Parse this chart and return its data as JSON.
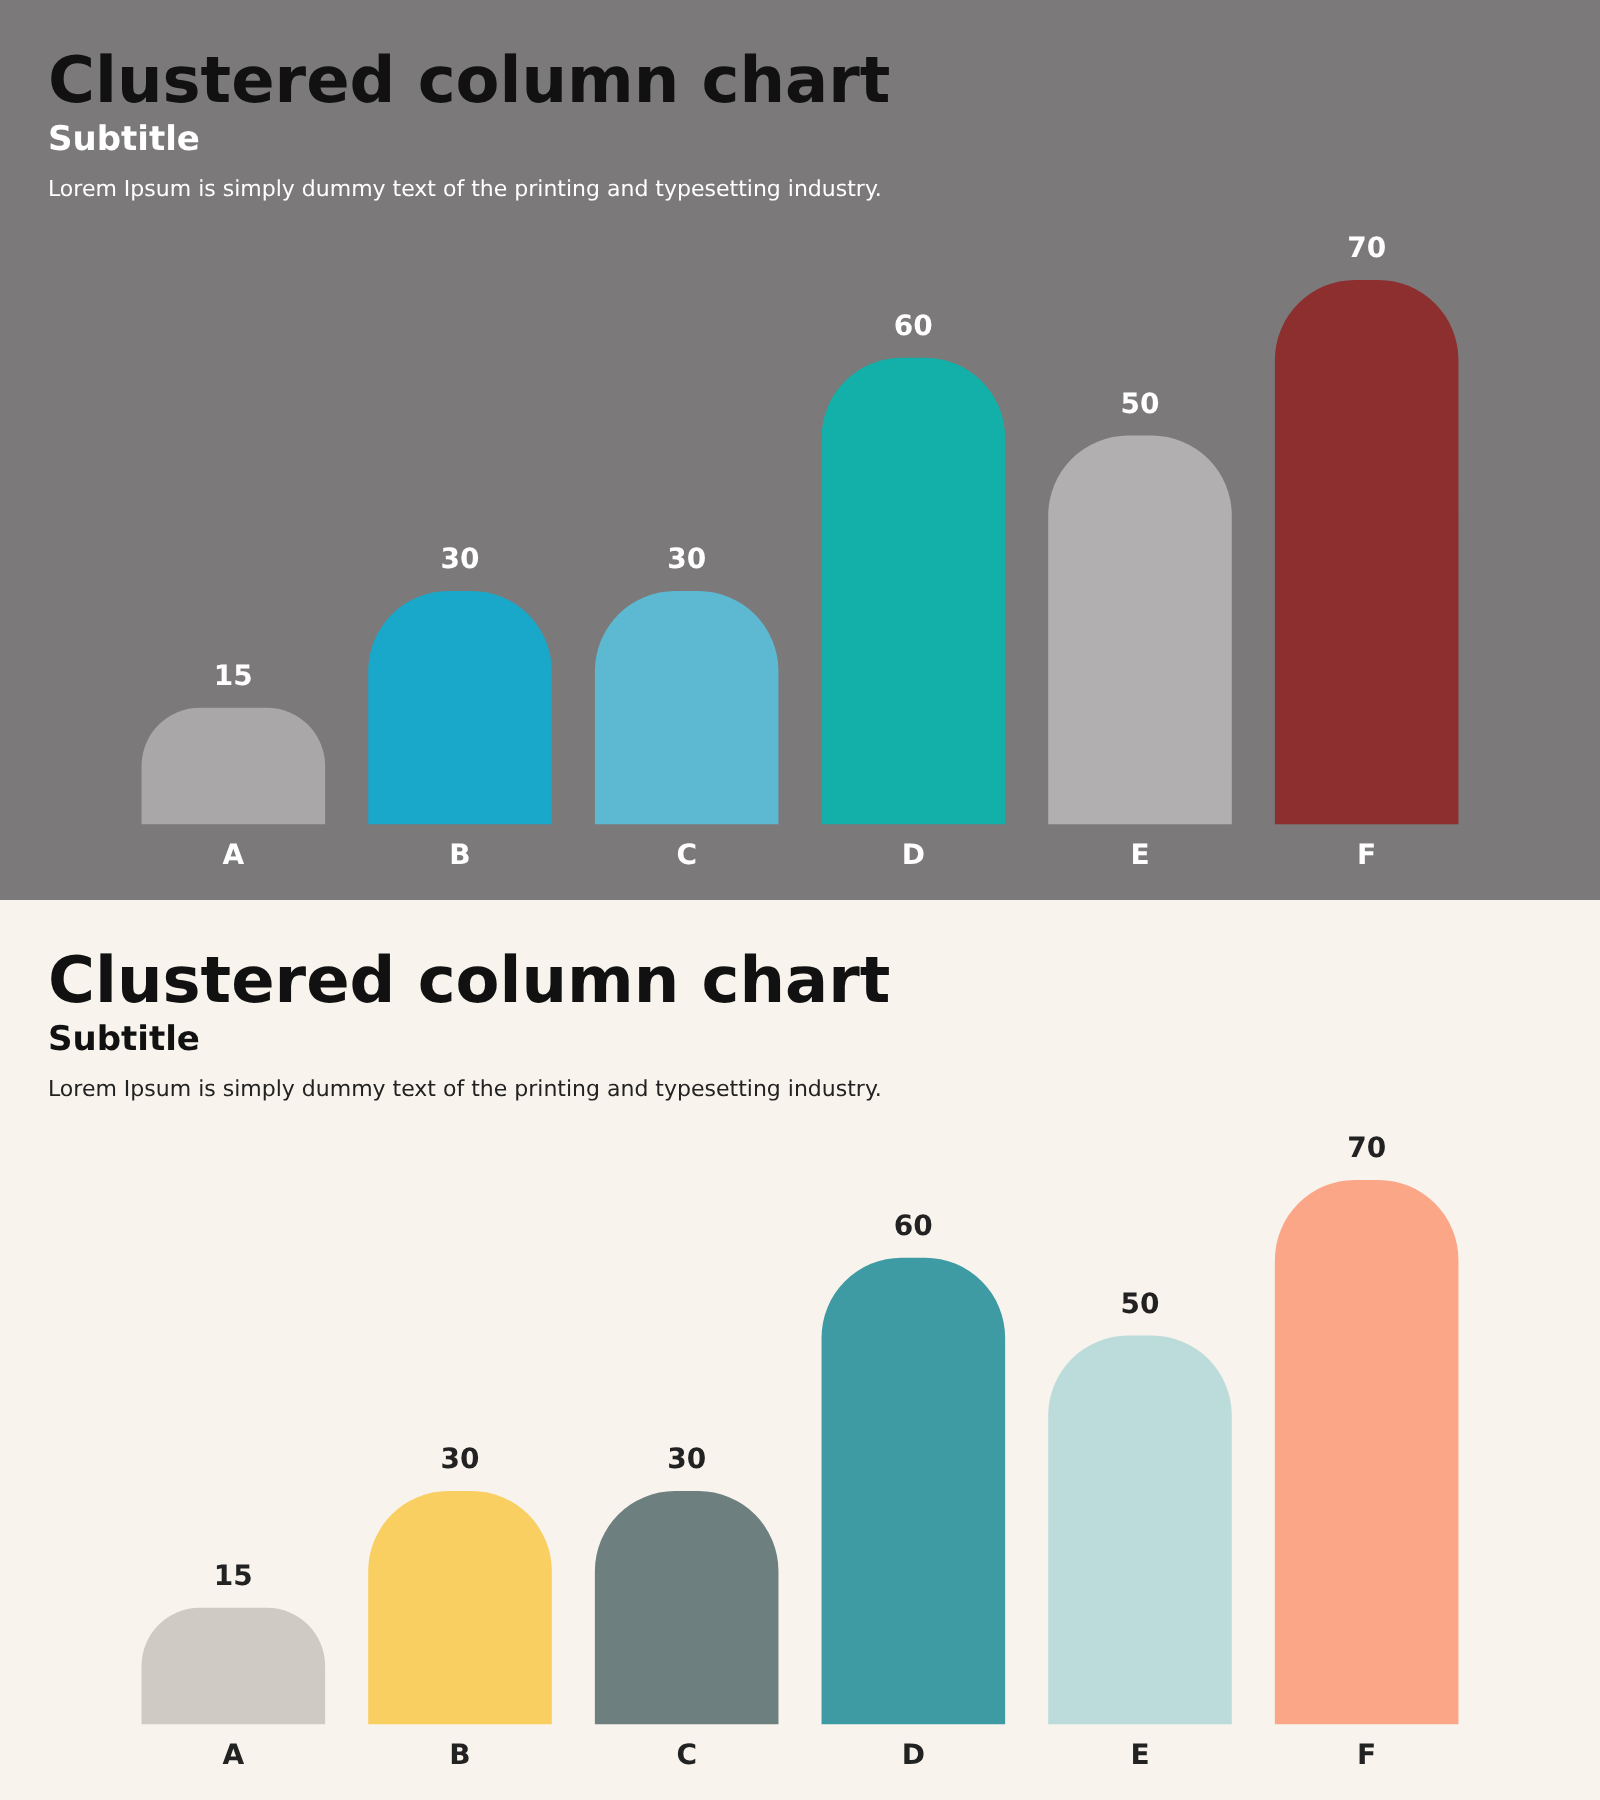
{
  "chart_data": [
    {
      "type": "bar",
      "title": "Clustered column chart",
      "subtitle": "Subtitle",
      "annotations": [
        "Lorem Ipsum is simply dummy text of the printing and typesetting industry."
      ],
      "categories": [
        "A",
        "B",
        "C",
        "D",
        "E",
        "F"
      ],
      "values": [
        15,
        30,
        30,
        60,
        50,
        70
      ],
      "colors": [
        "#a9a7a7",
        "#1aa8ca",
        "#5db9d1",
        "#12b0a8",
        "#b1afaf",
        "#8e2f2f"
      ],
      "data_labels": true,
      "grid": false,
      "legend": false
    },
    {
      "type": "bar",
      "title": "Clustered column chart",
      "subtitle": "Subtitle",
      "annotations": [
        "Lorem Ipsum is simply dummy text of the printing and typesetting industry."
      ],
      "categories": [
        "A",
        "B",
        "C",
        "D",
        "E",
        "F"
      ],
      "values": [
        15,
        30,
        30,
        60,
        50,
        70
      ],
      "colors": [
        "#cfcac4",
        "#f9cf62",
        "#6e7f7f",
        "#3e9aa3",
        "#bcdcdc",
        "#fca688"
      ],
      "data_labels": true,
      "grid": false,
      "legend": false
    }
  ]
}
